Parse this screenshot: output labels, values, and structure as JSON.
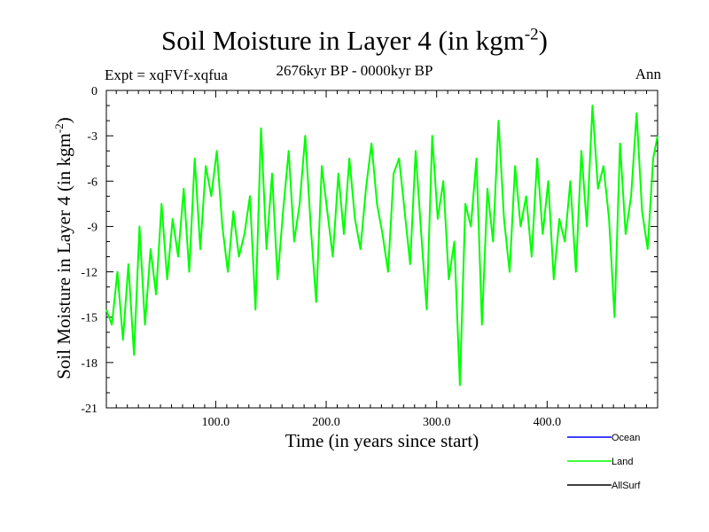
{
  "chart_data": {
    "type": "line",
    "title": "Soil Moisture in Layer 4 (in kgm",
    "title_sup": "-2",
    "title_close": ")",
    "subtitle_left": "Expt = xqFVf-xqfua",
    "subtitle_center": "2676kyr BP - 0000kyr BP",
    "subtitle_right": "Ann",
    "xlabel": "Time (in years since start)",
    "ylabel": "Soil Moisture in Layer 4 (in kgm",
    "ylabel_sup": "-2",
    "ylabel_close": ")",
    "xlim": [
      1,
      500
    ],
    "ylim": [
      -21,
      0
    ],
    "xticks": [
      100,
      200,
      300,
      400
    ],
    "xtick_labels": [
      "100.0",
      "200.0",
      "300.0",
      "400.0"
    ],
    "yticks": [
      0,
      -3,
      -6,
      -9,
      -12,
      -15,
      -18,
      -21
    ],
    "ytick_labels": [
      "0",
      "-3",
      "-6",
      "-9",
      "-12",
      "-15",
      "-18",
      "-21"
    ],
    "legend": [
      {
        "name": "Ocean",
        "color": "#0000ff"
      },
      {
        "name": "Land",
        "color": "#00ff00"
      },
      {
        "name": "AllSurf",
        "color": "#000000"
      }
    ],
    "series": [
      {
        "name": "Land",
        "color": "#00ff00",
        "x": [
          1,
          6,
          11,
          16,
          21,
          26,
          31,
          36,
          41,
          46,
          51,
          56,
          61,
          66,
          71,
          76,
          81,
          86,
          91,
          96,
          101,
          106,
          111,
          116,
          121,
          126,
          131,
          136,
          141,
          146,
          151,
          156,
          161,
          166,
          171,
          176,
          181,
          186,
          191,
          196,
          201,
          206,
          211,
          216,
          221,
          226,
          231,
          236,
          241,
          246,
          251,
          256,
          261,
          266,
          271,
          276,
          281,
          286,
          291,
          296,
          301,
          306,
          311,
          316,
          321,
          326,
          331,
          336,
          341,
          346,
          351,
          356,
          361,
          366,
          371,
          376,
          381,
          386,
          391,
          396,
          401,
          406,
          411,
          416,
          421,
          426,
          431,
          436,
          441,
          446,
          451,
          456,
          461,
          466,
          471,
          476,
          481,
          486,
          491,
          496,
          500
        ],
        "values": [
          -14.5,
          -15.5,
          -12.0,
          -16.5,
          -11.5,
          -17.5,
          -9.0,
          -15.5,
          -10.5,
          -13.5,
          -7.5,
          -12.5,
          -8.5,
          -11.0,
          -6.5,
          -12.0,
          -4.5,
          -10.5,
          -5.0,
          -7.0,
          -4.0,
          -9.0,
          -12.0,
          -8.0,
          -11.0,
          -9.5,
          -7.0,
          -14.5,
          -2.5,
          -10.5,
          -5.5,
          -12.5,
          -8.0,
          -4.0,
          -10.0,
          -7.5,
          -3.0,
          -9.0,
          -14.0,
          -5.0,
          -8.0,
          -11.0,
          -5.5,
          -9.5,
          -4.5,
          -8.5,
          -10.5,
          -6.5,
          -3.5,
          -7.5,
          -9.5,
          -12.0,
          -5.5,
          -4.5,
          -8.0,
          -11.5,
          -4.0,
          -9.5,
          -14.5,
          -3.0,
          -8.5,
          -6.0,
          -12.5,
          -10.0,
          -19.5,
          -7.5,
          -9.0,
          -4.5,
          -15.5,
          -6.5,
          -10.0,
          -2.0,
          -8.5,
          -12.0,
          -5.0,
          -9.0,
          -7.0,
          -11.0,
          -4.5,
          -9.5,
          -6.0,
          -12.5,
          -8.5,
          -10.0,
          -6.0,
          -12.0,
          -4.0,
          -9.0,
          -1.0,
          -6.5,
          -5.0,
          -8.5,
          -15.0,
          -3.5,
          -9.5,
          -7.0,
          -1.5,
          -8.0,
          -10.5,
          -4.5,
          -3.0
        ]
      }
    ]
  }
}
